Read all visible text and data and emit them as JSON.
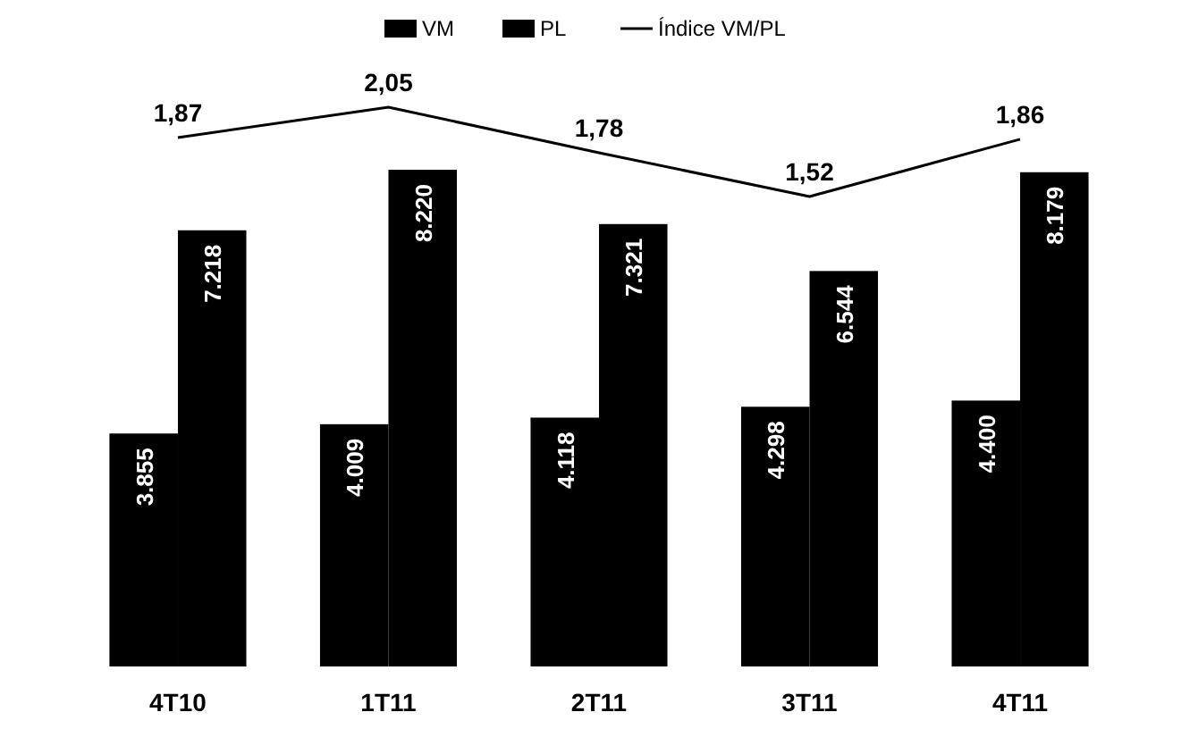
{
  "chart_data": {
    "type": "bar",
    "categories": [
      "4T10",
      "1T11",
      "2T11",
      "3T11",
      "4T11"
    ],
    "series": [
      {
        "name": "VM",
        "color": "#000000",
        "values": [
          3855,
          4009,
          4118,
          4298,
          4400
        ],
        "value_labels": [
          "3.855",
          "4.009",
          "4.118",
          "4.298",
          "4.400"
        ]
      },
      {
        "name": "PL",
        "color": "#000000",
        "values": [
          7218,
          8220,
          7321,
          6544,
          8179
        ],
        "value_labels": [
          "7.218",
          "8.220",
          "7.321",
          "6.544",
          "8.179"
        ]
      },
      {
        "name": "Índice VM/PL",
        "type": "line",
        "axis": "y2",
        "color": "#000000",
        "values": [
          1.87,
          2.05,
          1.78,
          1.52,
          1.86
        ],
        "value_labels": [
          "1,87",
          "2,05",
          "1,78",
          "1,52",
          "1,86"
        ]
      }
    ],
    "legend": "top",
    "marker": "none",
    "line_style": "solid"
  }
}
